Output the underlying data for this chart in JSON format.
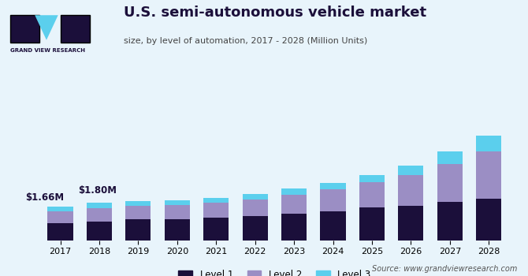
{
  "years": [
    2017,
    2018,
    2019,
    2020,
    2021,
    2022,
    2023,
    2024,
    2025,
    2026,
    2027,
    2028
  ],
  "level1": [
    0.75,
    0.82,
    0.92,
    0.94,
    1.0,
    1.08,
    1.16,
    1.28,
    1.46,
    1.52,
    1.68,
    1.82
  ],
  "level2": [
    0.52,
    0.58,
    0.6,
    0.62,
    0.65,
    0.72,
    0.85,
    0.96,
    1.1,
    1.38,
    1.68,
    2.1
  ],
  "level3": [
    0.22,
    0.25,
    0.22,
    0.2,
    0.22,
    0.25,
    0.28,
    0.3,
    0.34,
    0.4,
    0.58,
    0.72
  ],
  "color_level1": "#1b0f3a",
  "color_level2": "#9b8ec4",
  "color_level3": "#5bcfed",
  "title": "U.S. semi-autonomous vehicle market",
  "subtitle": "size, by level of automation, 2017 - 2028 (Million Units)",
  "annotation_2017": "$1.66M",
  "annotation_2018": "$1.80M",
  "source_text": "Source: www.grandviewresearch.com",
  "bg_color": "#e8f4fb",
  "legend_labels": [
    "Level 1",
    "Level 2",
    "Level 3"
  ],
  "bar_width": 0.65
}
